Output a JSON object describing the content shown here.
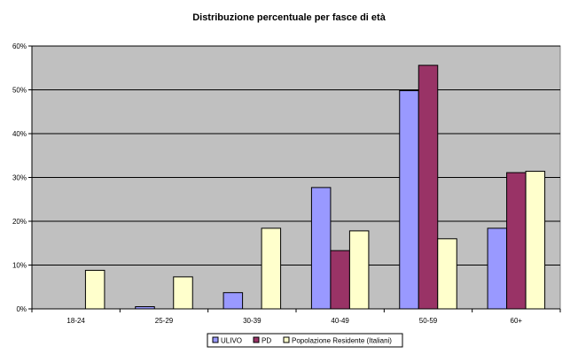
{
  "chart_data": {
    "type": "bar",
    "title": "Distribuzione percentuale per fasce di età",
    "xlabel": "",
    "ylabel": "",
    "categories": [
      "18-24",
      "25-29",
      "30-39",
      "40-49",
      "50-59",
      "60+"
    ],
    "ylim": [
      0,
      60
    ],
    "yticks": [
      0,
      10,
      20,
      30,
      40,
      50,
      60
    ],
    "ytick_labels": [
      "0%",
      "10%",
      "20%",
      "30%",
      "40%",
      "50%",
      "60%"
    ],
    "grid": true,
    "legend_position": "bottom",
    "series": [
      {
        "name": "ULIVO",
        "color": "#9999ff",
        "values": [
          0,
          0.5,
          3.7,
          27.7,
          49.8,
          18.4
        ]
      },
      {
        "name": "PD",
        "color": "#993366",
        "values": [
          0,
          0,
          0,
          13.3,
          55.6,
          31.1
        ]
      },
      {
        "name": "Popolazione Residente (Italiani)",
        "color": "#ffffcc",
        "values": [
          8.8,
          7.3,
          18.4,
          17.8,
          16.0,
          31.4
        ]
      }
    ],
    "plot_background": "#c0c0c0"
  }
}
